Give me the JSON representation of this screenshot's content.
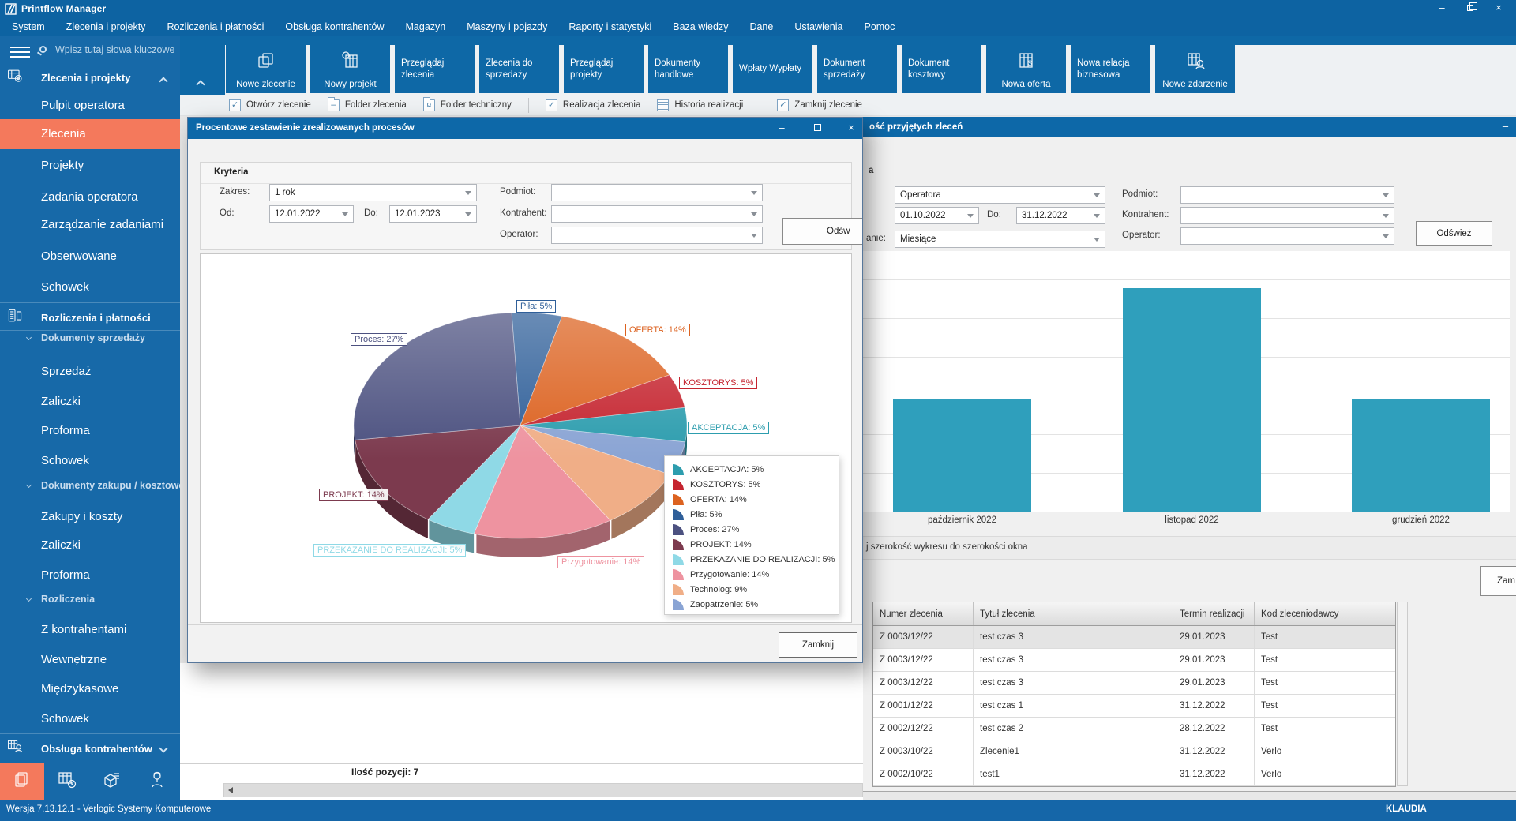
{
  "titlebar": {
    "title": "Printflow Manager"
  },
  "menubar": {
    "items": [
      "System",
      "Zlecenia i projekty",
      "Rozliczenia i płatności",
      "Obsługa kontrahentów",
      "Magazyn",
      "Maszyny i pojazdy",
      "Raporty i statystyki",
      "Baza wiedzy",
      "Dane",
      "Ustawienia",
      "Pomoc"
    ]
  },
  "toolbar": {
    "buttons": [
      {
        "label": "Nowe zlecenie",
        "icon": "new-order-icon"
      },
      {
        "label": "Nowy projekt",
        "icon": "new-project-icon"
      },
      {
        "label": "Przeglądaj zlecenia"
      },
      {
        "label": "Zlecenia do sprzedaży"
      },
      {
        "label": "Przeglądaj projekty"
      },
      {
        "label": "Dokumenty handlowe"
      },
      {
        "label": "Wpłaty Wypłaty"
      },
      {
        "label": "Dokument sprzedaży"
      },
      {
        "label": "Dokument kosztowy"
      },
      {
        "label": "Nowa oferta",
        "icon": "new-offer-icon"
      },
      {
        "label": "Nowa relacja biznesowa"
      },
      {
        "label": "Nowe zdarzenie",
        "icon": "new-event-icon"
      }
    ]
  },
  "toolbar2": {
    "items": [
      {
        "label": "Otwórz zlecenie",
        "icon": "checkbox-icon"
      },
      {
        "label": "Folder zlecenia",
        "icon": "folder-minus-icon"
      },
      {
        "label": "Folder techniczny",
        "icon": "folder-gear-icon",
        "sep_after": true
      },
      {
        "label": "Realizacja zlecenia",
        "icon": "checkbox-icon"
      },
      {
        "label": "Historia realizacji",
        "icon": "list-icon",
        "sep_after": true
      },
      {
        "label": "Zamknij zlecenie",
        "icon": "checkbox-icon"
      }
    ]
  },
  "sidebar": {
    "search_placeholder": "Wpisz tutaj słowa kluczowe",
    "sections": [
      {
        "label": "Zlecenia i projekty",
        "icon": "orders-projects-icon",
        "expanded": true,
        "items": [
          {
            "label": "Pulpit operatora"
          },
          {
            "label": "Zlecenia",
            "active": true
          },
          {
            "label": "Projekty"
          },
          {
            "label": "Zadania operatora"
          },
          {
            "label": "Zarządzanie zadaniami"
          },
          {
            "label": "Obserwowane"
          },
          {
            "label": "Schowek"
          }
        ]
      },
      {
        "label": "Rozliczenia i płatności",
        "icon": "payments-icon",
        "groups": [
          {
            "label": "Dokumenty sprzedaży",
            "items": [
              "Sprzedaż",
              "Zaliczki",
              "Proforma",
              "Schowek"
            ]
          },
          {
            "label": "Dokumenty zakupu / kosztowe",
            "items": [
              "Zakupy i koszty",
              "Zaliczki",
              "Proforma"
            ]
          },
          {
            "label": "Rozliczenia",
            "items": [
              "Z kontrahentami",
              "Wewnętrzne",
              "Międzykasowe",
              "Schowek"
            ]
          }
        ]
      },
      {
        "label": "Obsługa kontrahentów",
        "icon": "contractors-icon",
        "expanded": false
      }
    ],
    "bottom_icons": [
      "documents-icon",
      "planning-icon",
      "warehouse-icon",
      "presenter-icon"
    ]
  },
  "statusbar": {
    "version": "Wersja 7.13.12.1 - Verlogic Systemy Komputerowe",
    "user": "KLAUDIA"
  },
  "left_panel": {
    "items_count": "Ilość pozycji: 7"
  },
  "pie_dialog": {
    "title": "Procentowe zestawienie zrealizowanych procesów",
    "criteria": {
      "group_label": "Kryteria",
      "zakres_label": "Zakres:",
      "zakres_value": "1 rok",
      "od_label": "Od:",
      "od_value": "12.01.2022",
      "do_label": "Do:",
      "do_value": "12.01.2023",
      "podmiot_label": "Podmiot:",
      "kontrahent_label": "Kontrahent:",
      "operator_label": "Operator:",
      "refresh_button_visible": "Odśw"
    },
    "close_button": "Zamknij"
  },
  "orders_window": {
    "title_visible": "ość przyjętych zleceń",
    "criteria": {
      "group_label_visible": "a",
      "view_by_value": "Operatora",
      "date_from": "01.10.2022",
      "do_label": "Do:",
      "date_to": "31.12.2022",
      "grouping_label_visible": "anie:",
      "grouping_value": "Miesiące",
      "podmiot_label": "Podmiot:",
      "kontrahent_label": "Kontrahent:",
      "operator_label": "Operator:",
      "refresh_button": "Odśwież"
    },
    "fit_label_visible": "j szerokość wykresu do szerokości okna",
    "close_button_visible": "Zam",
    "table": {
      "columns": [
        "Numer zlecenia",
        "Tytuł zlecenia",
        "Termin realizacji",
        "Kod zleceniodawcy"
      ],
      "rows": [
        [
          "Z 0003/12/22",
          "test czas 3",
          "29.01.2023",
          "Test"
        ],
        [
          "Z 0003/12/22",
          "test czas 3",
          "29.01.2023",
          "Test"
        ],
        [
          "Z 0003/12/22",
          "test czas 3",
          "29.01.2023",
          "Test"
        ],
        [
          "Z 0001/12/22",
          "test czas 1",
          "31.12.2022",
          "Test"
        ],
        [
          "Z 0002/12/22",
          "test czas 2",
          "28.12.2022",
          "Test"
        ],
        [
          "Z 0003/10/22",
          "Zlecenie1",
          "31.12.2022",
          "Verlo"
        ],
        [
          "Z 0002/10/22",
          "test1",
          "31.12.2022",
          "Verlo"
        ]
      ],
      "selected_row_index": 0
    }
  },
  "chart_data": [
    {
      "type": "pie",
      "title": "Procentowe zestawienie zrealizowanych procesów",
      "slices": [
        {
          "name": "AKCEPTACJA",
          "value": 5,
          "color": "#2d9dae"
        },
        {
          "name": "KOSZTORYS",
          "value": 5,
          "color": "#c5242f"
        },
        {
          "name": "OFERTA",
          "value": 14,
          "color": "#dc6220"
        },
        {
          "name": "Piła",
          "value": 5,
          "color": "#2f5f99"
        },
        {
          "name": "Proces",
          "value": 27,
          "color": "#4c5180"
        },
        {
          "name": "PROJEKT",
          "value": 14,
          "color": "#7c3a4e"
        },
        {
          "name": "PRZEKAZANIE DO REALIZACJI",
          "value": 5,
          "color": "#8fd9e6"
        },
        {
          "name": "Przygotowanie",
          "value": 14,
          "color": "#ee93a0"
        },
        {
          "name": "Technolog",
          "value": 9,
          "color": "#f0ae87"
        },
        {
          "name": "Zaopatrzenie",
          "value": 5,
          "color": "#8aa4d4"
        }
      ],
      "clockwise_order": [
        "Piła",
        "OFERTA",
        "KOSZTORYS",
        "AKCEPTACJA",
        "Zaopatrzenie",
        "Technolog",
        "Przygotowanie",
        "PRZEKAZANIE DO REALIZACJI",
        "PROJEKT",
        "Proces"
      ],
      "start_angle_deg": -93,
      "labels_format": "Name: V%",
      "legend_position": "right-overlay",
      "style": "3d-pie"
    },
    {
      "type": "bar",
      "categories": [
        "październik 2022",
        "listopad 2022",
        "grudzień 2022"
      ],
      "values": [
        2,
        4,
        2
      ],
      "color": "#2f9fbc",
      "grid": true,
      "xlabel": "",
      "ylabel": "",
      "title_visible": "ość przyjętych zleceń"
    }
  ]
}
